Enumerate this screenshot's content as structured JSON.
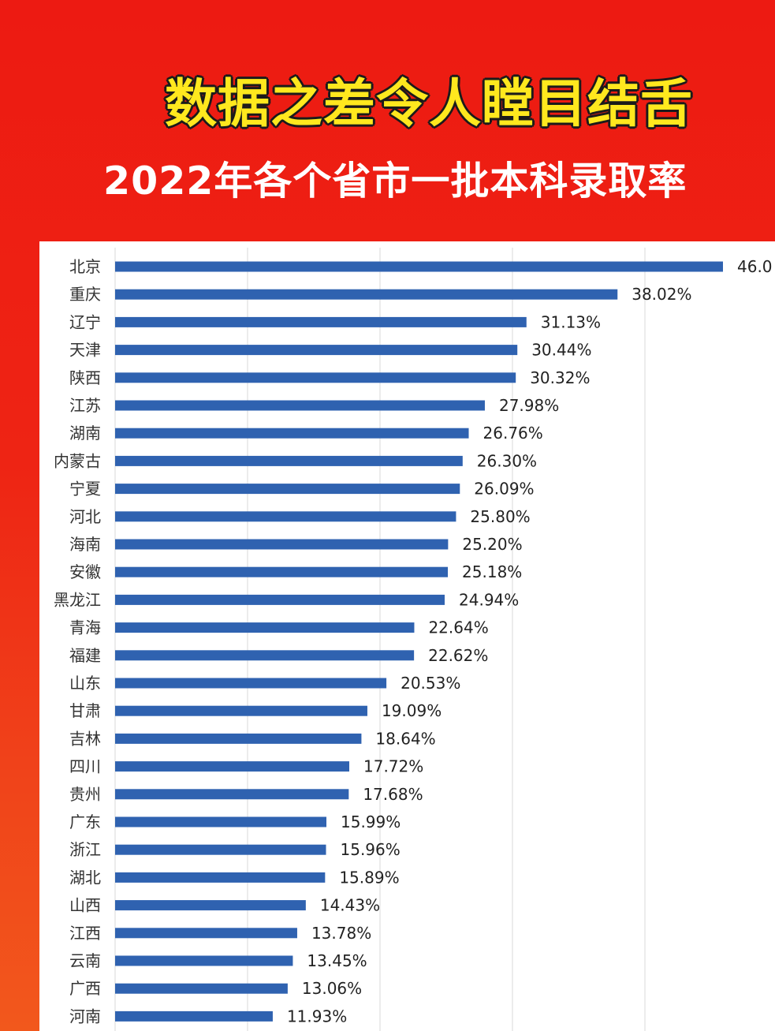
{
  "header": {
    "title": "数据之差令人瞠目结舌",
    "subtitle": "2022年各个省市一批本科录取率"
  },
  "colors": {
    "background": "#ed1a12",
    "title_fill": "#ffe81e",
    "title_outline": "#1b1b1b",
    "subtitle": "#ffffff",
    "bar": "#2f62b0",
    "gridline": "#d9d9d9"
  },
  "chart_data": {
    "type": "bar",
    "orientation": "horizontal",
    "grid": true,
    "xlim": [
      0,
      46.0
    ],
    "value_suffix": "%",
    "categories": [
      "北京",
      "重庆",
      "辽宁",
      "天津",
      "陕西",
      "江苏",
      "湖南",
      "内蒙古",
      "宁夏",
      "河北",
      "海南",
      "安徽",
      "黑龙江",
      "青海",
      "福建",
      "山东",
      "甘肃",
      "吉林",
      "四川",
      "贵州",
      "广东",
      "浙江",
      "湖北",
      "山西",
      "江西",
      "云南",
      "广西",
      "河南"
    ],
    "values": [
      46.0,
      38.02,
      31.13,
      30.44,
      30.32,
      27.98,
      26.76,
      26.3,
      26.09,
      25.8,
      25.2,
      25.18,
      24.94,
      22.64,
      22.62,
      20.53,
      19.09,
      18.64,
      17.72,
      17.68,
      15.99,
      15.96,
      15.89,
      14.43,
      13.78,
      13.45,
      13.06,
      11.93
    ],
    "value_labels": [
      "46.0",
      "38.02%",
      "31.13%",
      "30.44%",
      "30.32%",
      "27.98%",
      "26.76%",
      "26.30%",
      "26.09%",
      "25.80%",
      "25.20%",
      "25.18%",
      "24.94%",
      "22.64%",
      "22.62%",
      "20.53%",
      "19.09%",
      "18.64%",
      "17.72%",
      "17.68%",
      "15.99%",
      "15.96%",
      "15.89%",
      "14.43%",
      "13.78%",
      "13.45%",
      "13.06%",
      "11.93%"
    ]
  }
}
